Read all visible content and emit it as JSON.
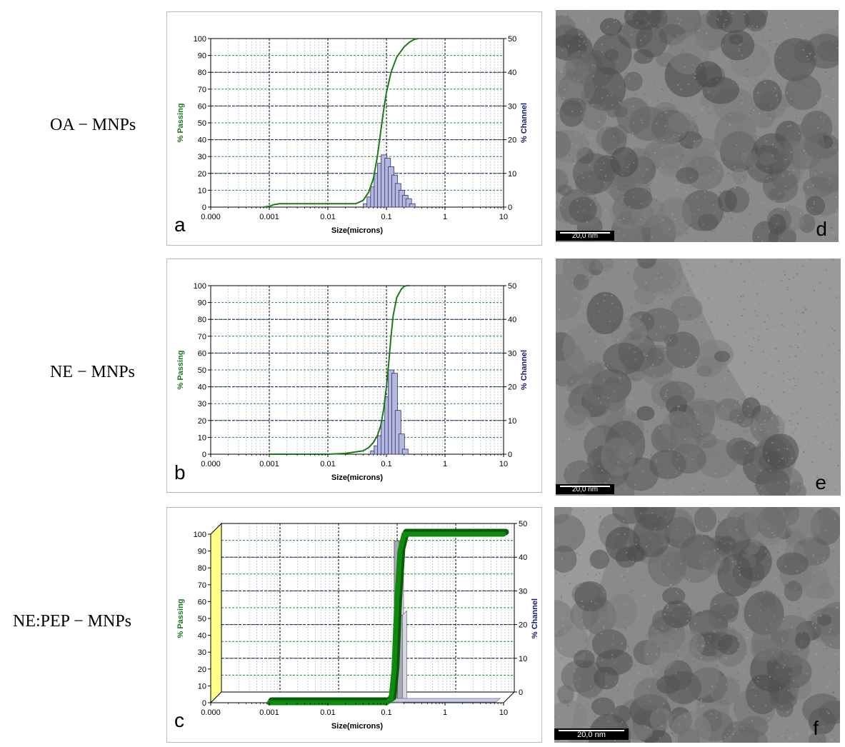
{
  "rows": [
    {
      "label": "OA − MNPs",
      "panel_letter": "a",
      "tem_letter": "d",
      "tem_scale": "20,0 nm"
    },
    {
      "label": "NE − MNPs",
      "panel_letter": "b",
      "tem_letter": "e",
      "tem_scale": "20,0 nm"
    },
    {
      "label": "NE:PEP − MNPs",
      "panel_letter": "c",
      "tem_letter": "f",
      "tem_scale": "20,0 nm"
    }
  ],
  "colors": {
    "passing": "#1a7a1a",
    "channel": "#1a1a7a",
    "bar_fill": "#b4b8dc",
    "grid_green": "#2e8b2e",
    "grid_blue": "#1a1a70",
    "wall": "#ffff88"
  },
  "chart_data": [
    {
      "type": "bar",
      "xscale": "log",
      "xlim": [
        0.0001,
        10
      ],
      "xticks": [
        "0.000",
        "0.001",
        "0.01",
        "0.1",
        "1",
        "10"
      ],
      "xlabel": "Size(microns)",
      "ylabel_left": "% Passing",
      "ylabel_right": "% Channel",
      "ylim_left": [
        0,
        100
      ],
      "ylim_right": [
        0,
        50
      ],
      "yticks_left": [
        0,
        10,
        20,
        30,
        40,
        50,
        60,
        70,
        80,
        90,
        100
      ],
      "yticks_right": [
        0,
        10,
        20,
        30,
        40,
        50
      ],
      "grid": true,
      "series": [
        {
          "name": "% Passing",
          "axis": "left",
          "kind": "line",
          "x": [
            0.0008,
            0.001,
            0.0012,
            0.0015,
            0.003,
            0.01,
            0.03,
            0.04,
            0.05,
            0.06,
            0.07,
            0.08,
            0.09,
            0.1,
            0.12,
            0.15,
            0.2,
            0.25,
            0.3,
            0.35
          ],
          "y": [
            0,
            0.5,
            1.5,
            2,
            2,
            2,
            2,
            4,
            9,
            17,
            30,
            45,
            58,
            68,
            80,
            89,
            95,
            98,
            99.5,
            100
          ]
        },
        {
          "name": "% Channel",
          "axis": "right",
          "kind": "bar",
          "x": [
            0.045,
            0.052,
            0.06,
            0.069,
            0.079,
            0.091,
            0.105,
            0.12,
            0.138,
            0.158,
            0.182,
            0.209,
            0.24,
            0.276
          ],
          "y": [
            1,
            3,
            6,
            10,
            13,
            15.5,
            14.5,
            12,
            9.5,
            7,
            5,
            3.5,
            2.5,
            1
          ]
        }
      ]
    },
    {
      "type": "bar",
      "xscale": "log",
      "xlim": [
        0.0001,
        10
      ],
      "xticks": [
        "0.000",
        "0.001",
        "0.01",
        "0.1",
        "1",
        "10"
      ],
      "xlabel": "Size(microns)",
      "ylabel_left": "% Passing",
      "ylabel_right": "% Channel",
      "ylim_left": [
        0,
        100
      ],
      "ylim_right": [
        0,
        50
      ],
      "yticks_left": [
        0,
        10,
        20,
        30,
        40,
        50,
        60,
        70,
        80,
        90,
        100
      ],
      "yticks_right": [
        0,
        10,
        20,
        30,
        40,
        50
      ],
      "grid": true,
      "series": [
        {
          "name": "% Passing",
          "axis": "left",
          "kind": "line",
          "x": [
            0.001,
            0.01,
            0.02,
            0.04,
            0.05,
            0.06,
            0.07,
            0.08,
            0.09,
            0.1,
            0.11,
            0.12,
            0.13,
            0.15,
            0.18,
            0.2,
            0.22,
            0.25
          ],
          "y": [
            0,
            0,
            0.5,
            2,
            4,
            7,
            11,
            17,
            27,
            40,
            55,
            70,
            82,
            93,
            98,
            99.5,
            100,
            100
          ]
        },
        {
          "name": "% Channel",
          "axis": "right",
          "kind": "bar",
          "x": [
            0.06,
            0.069,
            0.079,
            0.091,
            0.105,
            0.12,
            0.138,
            0.158,
            0.182,
            0.209
          ],
          "y": [
            1,
            2.5,
            5.5,
            10,
            17,
            25,
            24,
            13,
            6,
            1.5
          ]
        }
      ]
    },
    {
      "type": "bar",
      "style": "3d",
      "xscale": "log",
      "xlim": [
        0.0001,
        10
      ],
      "xticks": [
        "0.000",
        "0.001",
        "0.01",
        "0.1",
        "1",
        "10"
      ],
      "xlabel": "Size(microns)",
      "ylabel_left": "% Passing",
      "ylabel_right": "% Channel",
      "ylim_left": [
        0,
        100
      ],
      "ylim_right": [
        0,
        50
      ],
      "yticks_left": [
        0,
        10,
        20,
        30,
        40,
        50,
        60,
        70,
        80,
        90,
        100
      ],
      "yticks_right": [
        0,
        10,
        20,
        30,
        40,
        50
      ],
      "grid": true,
      "series": [
        {
          "name": "% Passing",
          "axis": "left",
          "kind": "line",
          "x": [
            0.001,
            0.01,
            0.1,
            0.12,
            0.135,
            0.15,
            0.17,
            0.2,
            0.3,
            1,
            3,
            10
          ],
          "y": [
            0,
            0,
            0,
            2,
            20,
            60,
            90,
            100,
            100,
            100,
            100,
            100
          ]
        },
        {
          "name": "% Channel",
          "axis": "right",
          "kind": "bar",
          "x": [
            0.001,
            0.01,
            0.12,
            0.15,
            0.17,
            0.2,
            0.3,
            1,
            3,
            6
          ],
          "y": [
            0,
            0,
            2,
            48,
            26,
            0,
            0,
            0,
            0,
            0
          ]
        }
      ]
    }
  ]
}
